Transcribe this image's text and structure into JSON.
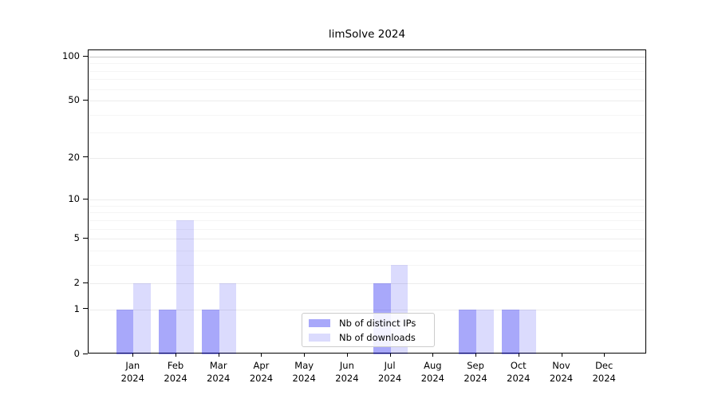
{
  "chart_data": {
    "type": "bar",
    "title": "limSolve 2024",
    "xlabel": "",
    "ylabel": "",
    "year": "2024",
    "categories": [
      "Jan",
      "Feb",
      "Mar",
      "Apr",
      "May",
      "Jun",
      "Jul",
      "Aug",
      "Sep",
      "Oct",
      "Nov",
      "Dec"
    ],
    "series": [
      {
        "name": "Nb of distinct IPs",
        "color": "rgba(0,0,240,0.34)",
        "solid_color": "#a9a9f8",
        "values": [
          1,
          1,
          1,
          0,
          0,
          0,
          2,
          0,
          1,
          1,
          0,
          0
        ]
      },
      {
        "name": "Nb of downloads",
        "color": "rgba(0,0,240,0.14)",
        "solid_color": "#dcdcf9",
        "values": [
          2,
          7,
          2,
          0,
          0,
          0,
          3,
          0,
          1,
          1,
          0,
          0
        ]
      }
    ],
    "y_scale": "log10(1+x)",
    "ylim": [
      0,
      115
    ],
    "y_major_ticks": [
      0,
      1,
      2,
      5,
      10,
      20,
      50,
      100
    ],
    "y_minor_ticks": [
      3,
      4,
      6,
      7,
      8,
      9,
      30,
      40,
      60,
      70,
      80,
      90
    ],
    "grid": {
      "on": true,
      "major_color": "#ececec",
      "minor_color": "#f5f5f5",
      "top_line_value": 100,
      "top_line_color": "#c6c6c6"
    },
    "legend": {
      "position": "bottom-center",
      "border_color": "#cccccc"
    }
  }
}
